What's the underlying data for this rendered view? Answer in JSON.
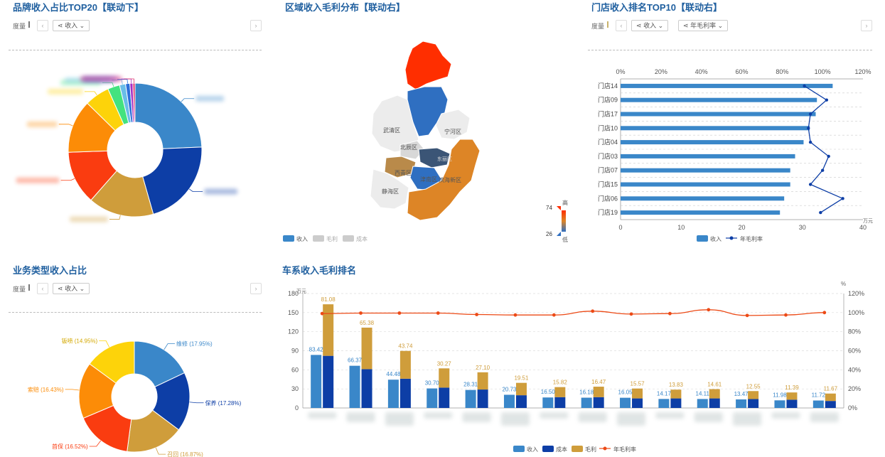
{
  "toolbar": {
    "measure_label": "度量",
    "select_icon": "network-icon",
    "dropdown_icon": "chevron-down-icon",
    "prev_icon": "chevron-left-icon",
    "next_icon": "chevron-right-icon"
  },
  "brand_panel": {
    "title": "品牌收入占比TOP20【联动下】",
    "select_value": "收入",
    "colors": [
      "#3a87c9",
      "#0d3ea6",
      "#cf9d3b",
      "#fa3c10",
      "#fc8c07",
      "#fdd30a",
      "#43e27f",
      "#69bde8",
      "#2c6fd9",
      "#a52ec4",
      "#e12d6a"
    ]
  },
  "region_panel": {
    "title": "区域收入毛利分布【联动右】",
    "legend": [
      "收入",
      "毛利",
      "成本"
    ],
    "scale_max": "74",
    "scale_min": "26",
    "scale_high": "高",
    "scale_low": "低",
    "regions": [
      "武清区",
      "宁河区",
      "北辰区",
      "西青区",
      "津南区",
      "静海区",
      "滨海新区",
      "东丽区"
    ]
  },
  "store_panel": {
    "title": "门店收入排名TOP10【联动右】",
    "select_value": "收入",
    "select2_value": "年毛利率",
    "unit": "万元",
    "legend_revenue": "收入",
    "legend_margin": "年毛利率"
  },
  "biz_panel": {
    "title": "业务类型收入占比",
    "select_value": "收入",
    "labels": [
      "维修 (17.95%)",
      "保养 (17.28%)",
      "召回 (16.87%)",
      "首保 (16.52%)",
      "索赔 (16.43%)",
      "钣喷 (14.95%)"
    ]
  },
  "series_panel": {
    "title": "车系收入毛利排名",
    "unit_left": "万元",
    "unit_right": "%",
    "legend": [
      "收入",
      "成本",
      "毛利",
      "年毛利率"
    ]
  },
  "chart_data": [
    {
      "id": "brand",
      "type": "pie",
      "title": "品牌收入占比TOP20【联动下】",
      "values": [
        23.4,
        20.5,
        15.3,
        12.5,
        12.4,
        5.8,
        2.8,
        1.4,
        1.0,
        0.7,
        0.5
      ],
      "note": "category labels are blurred in the original"
    },
    {
      "id": "store",
      "type": "bar",
      "title": "门店收入排名TOP10【联动右】",
      "categories": [
        "门店14",
        "门店09",
        "门店17",
        "门店10",
        "门店04",
        "门店03",
        "门店07",
        "门店15",
        "门店06",
        "门店19"
      ],
      "series": [
        {
          "name": "收入",
          "values": [
            35.0,
            32.4,
            32.2,
            31.2,
            30.2,
            28.8,
            28.0,
            28.0,
            27.0,
            26.3
          ]
        },
        {
          "name": "年毛利率",
          "values": [
            91,
            102,
            94,
            93,
            94,
            103,
            100,
            94,
            110,
            99
          ]
        }
      ],
      "x_ticks": [
        "0",
        "10",
        "20",
        "30",
        "40"
      ],
      "top_ticks": [
        "0%",
        "20%",
        "40%",
        "60%",
        "80%",
        "100%",
        "120%"
      ],
      "xlim": [
        0,
        40
      ],
      "top_lim": [
        0,
        120
      ]
    },
    {
      "id": "biz",
      "type": "pie",
      "title": "业务类型收入占比",
      "categories": [
        "维修",
        "保养",
        "召回",
        "首保",
        "索赔",
        "钣喷"
      ],
      "values": [
        17.95,
        17.28,
        16.87,
        16.52,
        16.43,
        14.95
      ],
      "colors": [
        "#3a87c9",
        "#0d3ea6",
        "#cf9d3b",
        "#fa3c10",
        "#fc8c07",
        "#fdd30a"
      ]
    },
    {
      "id": "series",
      "type": "bar",
      "title": "车系收入毛利排名",
      "series": [
        {
          "name": "收入",
          "values": [
            83.42,
            66.37,
            44.48,
            30.7,
            28.31,
            20.73,
            16.5,
            16.18,
            16.05,
            14.17,
            14.11,
            13.47,
            11.98,
            11.72
          ]
        },
        {
          "name": "成本",
          "values": [
            82.0,
            61.0,
            46.0,
            32.0,
            29.0,
            20.0,
            17.0,
            17.0,
            15.0,
            15.0,
            15.0,
            14.0,
            13.0,
            11.0
          ]
        },
        {
          "name": "毛利",
          "values": [
            81.08,
            65.38,
            43.74,
            30.27,
            27.1,
            19.51,
            15.82,
            16.47,
            15.57,
            13.83,
            14.61,
            12.55,
            11.39,
            11.67
          ]
        },
        {
          "name": "年毛利率",
          "values": [
            99,
            99.5,
            99.5,
            99.5,
            98,
            97.5,
            97.5,
            101.5,
            98.5,
            99,
            103,
            97,
            97.5,
            100
          ]
        }
      ],
      "y_ticks_left": [
        "0",
        "30",
        "60",
        "90",
        "120",
        "150",
        "180"
      ],
      "y_ticks_right": [
        "0%",
        "20%",
        "40%",
        "60%",
        "80%",
        "100%",
        "120%"
      ],
      "ylim": [
        0,
        180
      ],
      "y2lim": [
        0,
        120
      ],
      "note": "category labels are blurred in the original"
    }
  ]
}
